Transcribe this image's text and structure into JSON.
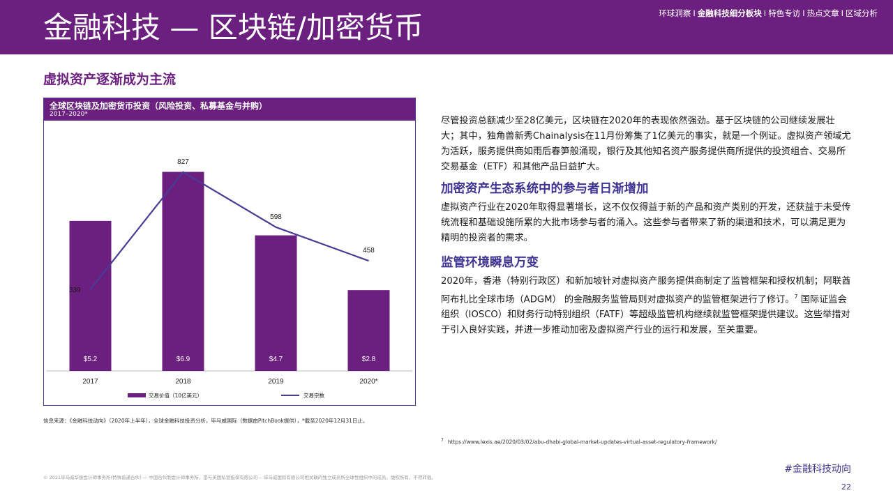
{
  "header": {
    "title": "金融科技 — 区块链/加密货币",
    "nav": [
      "环球洞察",
      "金融科技细分板块",
      "特色专访",
      "热点文章",
      "区域分析"
    ],
    "nav_active_index": 1,
    "nav_separator": "I"
  },
  "section_title": "虚拟资产逐渐成为主流",
  "chart": {
    "title": "全球区块链及加密货币投资（风险投资、私募基金与并购）",
    "subtitle": "2017–2020*",
    "legend_bar": "交易价值（10亿美元）",
    "legend_line": "交易宗数"
  },
  "chart_data": {
    "type": "bar",
    "categories": [
      "2017",
      "2018",
      "2019",
      "2020*"
    ],
    "series": [
      {
        "name": "交易价值（10亿美元）",
        "type": "bar",
        "values": [
          5.2,
          6.9,
          4.7,
          2.8
        ],
        "labels": [
          "$5.2",
          "$6.9",
          "$4.7",
          "$2.8"
        ],
        "color": "#6b1f7f"
      },
      {
        "name": "交易宗数",
        "type": "line",
        "values": [
          339,
          827,
          598,
          458
        ],
        "labels": [
          "339",
          "827",
          "598",
          "458"
        ],
        "color": "#4a3b97"
      }
    ],
    "bar_ylim": [
      0,
      8
    ],
    "line_ylim": [
      0,
      960
    ],
    "grid": false,
    "legend_position": "bottom"
  },
  "source_note": "信息来源：《金融科技动向》（2020年上半年），全球金融科技投资分析，毕马威国际（数据由PitchBook提供），*截至2020年12月31日止。",
  "paragraphs": {
    "p1": "尽管投资总额减少至28亿美元，区块链在2020年的表现依然强劲。基于区块链的公司继续发展壮大；其中，独角兽新秀Chainalysis在11月份筹集了1亿美元的事实，就是一个例证。虚拟资产领域尤为活跃，服务提供商如雨后春笋般涌现，银行及其他知名资产服务提供商所提供的投资组合、交易所交易基金（ETF）和其他产品日益扩大。",
    "h2": "加密资产生态系统中的参与者日渐增加",
    "p2": "虚拟资产行业在2020年取得显著增长，这不仅仅得益于新的产品和资产类别的开发，还获益于未受传统流程和基础设施所累的大批市场参与者的涌入。这些参与者带来了新的渠道和技术，可以满足更为精明的投资者的需求。",
    "h3": "监管环境瞬息万变",
    "p3a": "2020年，香港（特别行政区）和新加坡针对虚拟资产服务提供商制定了监管框架和授权机制；阿联酋阿布扎比全球市场（ADGM） 的金融服务监管局则对虚拟资产的监管框架进行了修订。",
    "p3_sup": "7",
    "p3b": " 国际证监会组织（IOSCO）和财务行动特别组织（FATF）等超级监管机构继续就监管框架提供建议。这些举措对于引入良好实践，并进一步推动加密及虚拟资产行业的运行和发展，至关重要。"
  },
  "footnote": {
    "num": "7",
    "text": "https://www.lexis.ae/2020/03/02/abu-dhabi-global-market-updates-virtual-asset-regulatory-framework/"
  },
  "footer": {
    "copyright": "© 2021毕马威华振会计师事务所(特殊普通合伙) — 中国合伙制会计师事务所，是与英国私营担保有限公司— 毕马威国际有限公司相关联的独立成员所全球性组织中的成员。版权所有，不得转载。",
    "hashtag": "#金融科技动向",
    "page_number": "22"
  }
}
